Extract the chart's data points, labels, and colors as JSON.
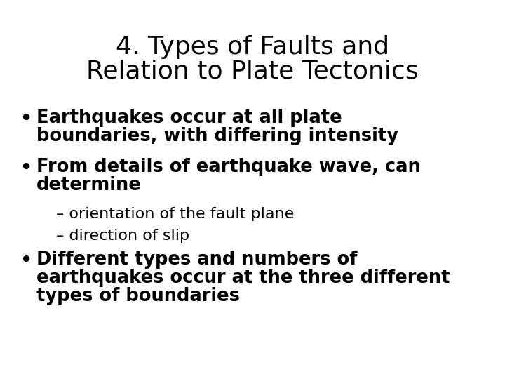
{
  "background_color": "#ffffff",
  "title_line1": "4. Types of Faults and",
  "title_line2": "Relation to Plate Tectonics",
  "title_fontsize": 26,
  "title_fontweight": "normal",
  "title_color": "#000000",
  "body_fontsize": 18.5,
  "body_fontweight": "bold",
  "sub_fontsize": 16,
  "sub_fontweight": "normal",
  "text_color": "#000000",
  "content": [
    {
      "type": "bullet",
      "lines": [
        "Earthquakes occur at all plate",
        "boundaries, with differing intensity"
      ]
    },
    {
      "type": "bullet",
      "lines": [
        "From details of earthquake wave, can",
        "determine"
      ]
    },
    {
      "type": "sub",
      "lines": [
        "– orientation of the fault plane"
      ]
    },
    {
      "type": "sub",
      "lines": [
        "– direction of slip"
      ]
    },
    {
      "type": "bullet",
      "lines": [
        "Different types and numbers of",
        "earthquakes occur at the three different",
        "types of boundaries"
      ]
    }
  ]
}
